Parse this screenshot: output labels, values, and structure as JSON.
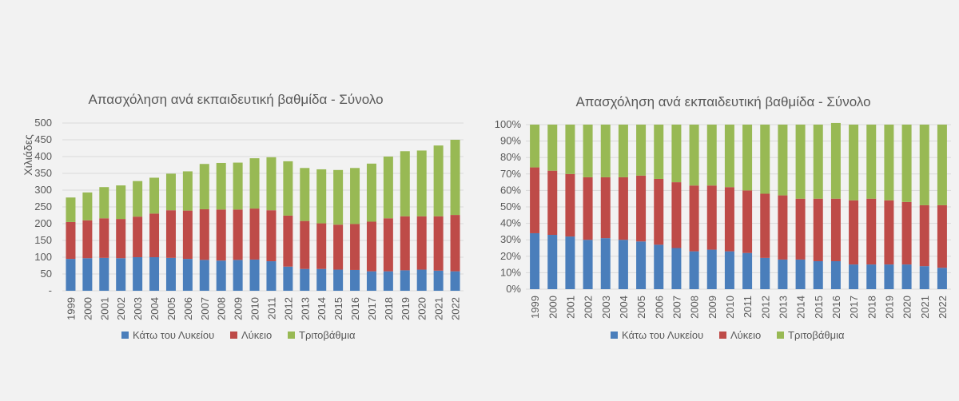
{
  "colors": {
    "below_lyceum": "#4a7ebb",
    "lyceum": "#be4b48",
    "tertiary": "#98b954",
    "background": "#f2f2f2",
    "gridline": "#d9d9d9",
    "text": "#595959"
  },
  "chart_data": [
    {
      "type": "bar",
      "stacked": true,
      "title": "Απασχόληση ανά εκπαιδευτική βαθμίδα - Σύνολο",
      "xlabel": "",
      "ylabel": "Χιλιάδες",
      "ylim": [
        0,
        500
      ],
      "yticks": [
        "-",
        "50",
        "100",
        "150",
        "200",
        "250",
        "300",
        "350",
        "400",
        "450",
        "500"
      ],
      "grid": true,
      "legend_position": "bottom",
      "categories": [
        "1999",
        "2000",
        "2001",
        "2002",
        "2003",
        "2004",
        "2005",
        "2006",
        "2007",
        "2008",
        "2009",
        "2010",
        "2011",
        "2012",
        "2013",
        "2014",
        "2015",
        "2016",
        "2017",
        "2018",
        "2019",
        "2020",
        "2021",
        "2022"
      ],
      "series": [
        {
          "name": "Κάτω του Λυκείου",
          "values": [
            95,
            97,
            98,
            97,
            100,
            100,
            98,
            95,
            92,
            90,
            92,
            93,
            88,
            72,
            65,
            65,
            63,
            62,
            58,
            58,
            61,
            63,
            60,
            58
          ]
        },
        {
          "name": "Λύκειο",
          "values": [
            110,
            113,
            118,
            117,
            121,
            130,
            142,
            144,
            151,
            152,
            150,
            152,
            152,
            152,
            143,
            136,
            134,
            137,
            148,
            158,
            161,
            159,
            162,
            168
          ]
        },
        {
          "name": "Τριτοβάθμια",
          "values": [
            73,
            83,
            93,
            100,
            106,
            107,
            109,
            117,
            135,
            139,
            140,
            150,
            158,
            162,
            158,
            161,
            163,
            167,
            173,
            184,
            194,
            196,
            211,
            224
          ]
        }
      ]
    },
    {
      "type": "bar",
      "stacked": true,
      "percent": true,
      "title": "Απασχόληση ανά εκπαιδευτική βαθμίδα - Σύνολο",
      "xlabel": "",
      "ylabel": "",
      "ylim": [
        0,
        100
      ],
      "yticks": [
        "0%",
        "10%",
        "20%",
        "30%",
        "40%",
        "50%",
        "60%",
        "70%",
        "80%",
        "90%",
        "100%"
      ],
      "grid": true,
      "legend_position": "bottom",
      "categories": [
        "1999",
        "2000",
        "2001",
        "2002",
        "2003",
        "2004",
        "2005",
        "2006",
        "2007",
        "2008",
        "2009",
        "2010",
        "2011",
        "2012",
        "2013",
        "2014",
        "2015",
        "2016",
        "2017",
        "2018",
        "2019",
        "2020",
        "2021",
        "2022"
      ],
      "series": [
        {
          "name": "Κάτω του Λυκείου",
          "values": [
            34,
            33,
            32,
            30,
            31,
            30,
            29,
            27,
            25,
            23,
            24,
            23,
            22,
            19,
            18,
            18,
            17,
            17,
            15,
            15,
            15,
            15,
            14,
            13
          ]
        },
        {
          "name": "Λύκειο",
          "values": [
            40,
            39,
            38,
            38,
            37,
            38,
            40,
            40,
            40,
            40,
            39,
            39,
            38,
            39,
            39,
            37,
            38,
            38,
            39,
            40,
            39,
            38,
            37,
            38
          ]
        },
        {
          "name": "Τριτοβάθμια",
          "values": [
            26,
            28,
            30,
            32,
            32,
            32,
            31,
            33,
            35,
            37,
            37,
            38,
            40,
            42,
            43,
            45,
            45,
            46,
            46,
            45,
            46,
            47,
            49,
            49
          ]
        }
      ]
    }
  ]
}
